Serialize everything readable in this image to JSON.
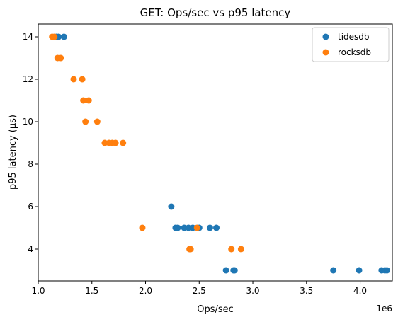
{
  "chart_data": {
    "type": "scatter",
    "title": "GET: Ops/sec vs p95 latency",
    "xlabel": "Ops/sec",
    "ylabel": "p95 latency (μs)",
    "x_scale_label": "1e6",
    "xlim": [
      1.0,
      4.3
    ],
    "ylim": [
      2.5,
      14.6
    ],
    "x_ticks": [
      1.0,
      1.5,
      2.0,
      2.5,
      3.0,
      3.5,
      4.0
    ],
    "x_tick_labels": [
      "1.0",
      "1.5",
      "2.0",
      "2.5",
      "3.0",
      "3.5",
      "4.0"
    ],
    "y_ticks": [
      4,
      6,
      8,
      10,
      12,
      14
    ],
    "y_tick_labels": [
      "4",
      "6",
      "8",
      "10",
      "12",
      "14"
    ],
    "grid": false,
    "legend_position": "top-right",
    "series": [
      {
        "name": "tidesdb",
        "color": "#1f77b4",
        "points": [
          [
            1.17,
            14
          ],
          [
            1.19,
            14
          ],
          [
            1.24,
            14
          ],
          [
            2.24,
            6
          ],
          [
            2.28,
            5
          ],
          [
            2.3,
            5
          ],
          [
            2.36,
            5
          ],
          [
            2.4,
            5
          ],
          [
            2.44,
            5
          ],
          [
            2.5,
            5
          ],
          [
            2.6,
            5
          ],
          [
            2.66,
            5
          ],
          [
            2.75,
            3
          ],
          [
            2.82,
            3
          ],
          [
            2.83,
            3
          ],
          [
            3.75,
            3
          ],
          [
            3.99,
            3
          ],
          [
            4.2,
            3
          ],
          [
            4.23,
            3
          ],
          [
            4.25,
            3
          ]
        ]
      },
      {
        "name": "rocksdb",
        "color": "#ff7f0e",
        "points": [
          [
            1.13,
            14
          ],
          [
            1.15,
            14
          ],
          [
            1.18,
            13
          ],
          [
            1.21,
            13
          ],
          [
            1.33,
            12
          ],
          [
            1.41,
            12
          ],
          [
            1.42,
            11
          ],
          [
            1.47,
            11
          ],
          [
            1.44,
            10
          ],
          [
            1.55,
            10
          ],
          [
            1.62,
            9
          ],
          [
            1.66,
            9
          ],
          [
            1.69,
            9
          ],
          [
            1.72,
            9
          ],
          [
            1.79,
            9
          ],
          [
            1.97,
            5
          ],
          [
            2.48,
            5
          ],
          [
            2.41,
            4
          ],
          [
            2.42,
            4
          ],
          [
            2.8,
            4
          ],
          [
            2.89,
            4
          ]
        ]
      }
    ]
  }
}
